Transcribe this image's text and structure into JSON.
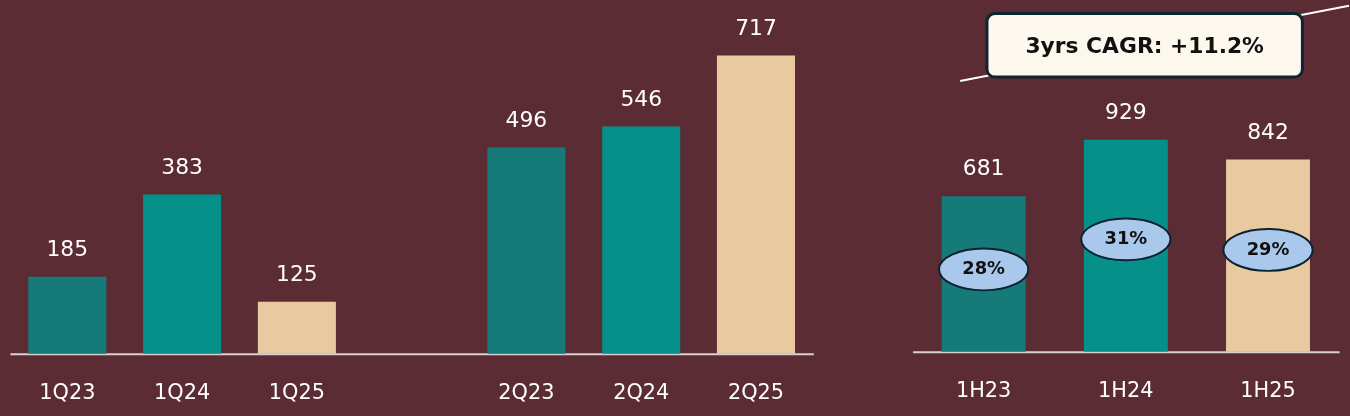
{
  "chart_data": [
    {
      "type": "bar",
      "categories": [
        "1Q23",
        "1Q24",
        "1Q25",
        null,
        "2Q23",
        "2Q24",
        "2Q25"
      ],
      "values": [
        185,
        383,
        125,
        null,
        496,
        546,
        717
      ],
      "colors": [
        "#167a78",
        "#05918a",
        "#e8c9a0",
        "#e8c9a0",
        "#167a78",
        "#05918a",
        "#e8c9a0"
      ],
      "data_labels": true
    },
    {
      "type": "bar",
      "categories": [
        "1H23",
        "1H24",
        "1H25"
      ],
      "values": [
        681,
        929,
        842
      ],
      "colors": [
        "#167a78",
        "#05918a",
        "#e8c9a0"
      ],
      "data_labels": true,
      "annotations": [
        "3yrs CAGR: +11.2%",
        "28%",
        "31%",
        "29%"
      ]
    }
  ]
}
